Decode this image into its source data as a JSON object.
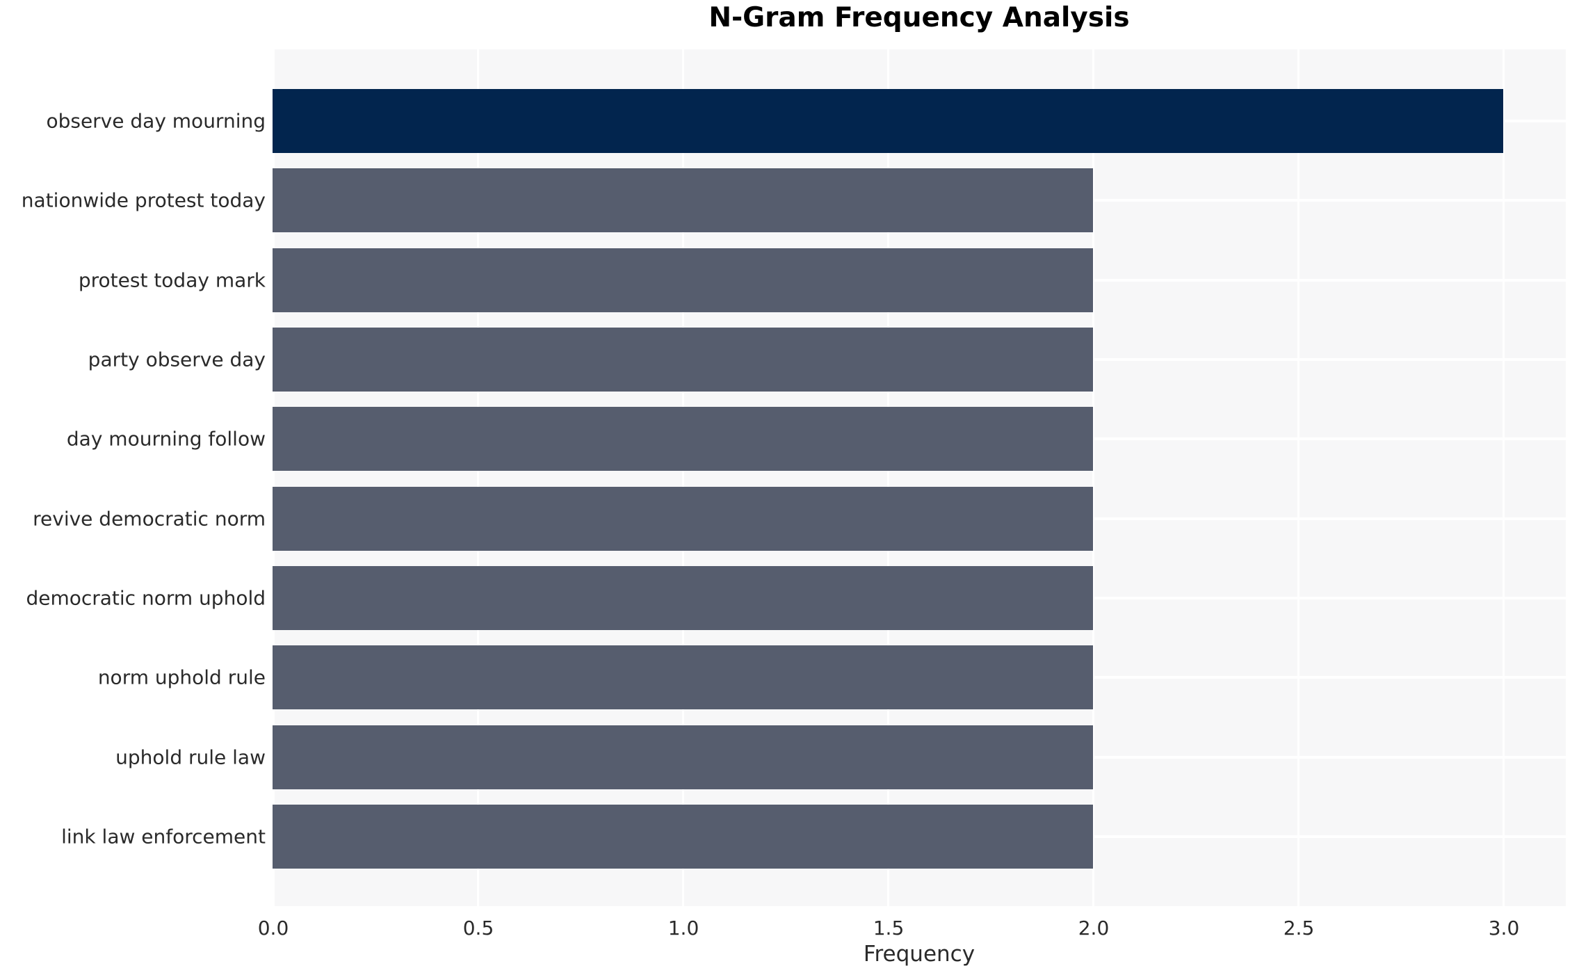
{
  "chart_data": {
    "type": "bar",
    "orientation": "horizontal",
    "title": "N-Gram Frequency Analysis",
    "xlabel": "Frequency",
    "ylabel": "",
    "categories": [
      "observe day mourning",
      "nationwide protest today",
      "protest today mark",
      "party observe day",
      "day mourning follow",
      "revive democratic norm",
      "democratic norm uphold",
      "norm uphold rule",
      "uphold rule law",
      "link law enforcement"
    ],
    "values": [
      3,
      2,
      2,
      2,
      2,
      2,
      2,
      2,
      2,
      2
    ],
    "xlim": [
      0,
      3.15
    ],
    "xticks": [
      0.0,
      0.5,
      1.0,
      1.5,
      2.0,
      2.5,
      3.0
    ],
    "xtick_labels": [
      "0.0",
      "0.5",
      "1.0",
      "1.5",
      "2.0",
      "2.5",
      "3.0"
    ],
    "grid": true,
    "legend": "none",
    "highlight_index": 0,
    "colors": {
      "highlight_bar": "#02254e",
      "default_bar": "#565d6e",
      "plot_background": "#f7f7f8",
      "gridline": "#ffffff",
      "text": "#2a2a2a",
      "title_text": "#000000"
    }
  }
}
